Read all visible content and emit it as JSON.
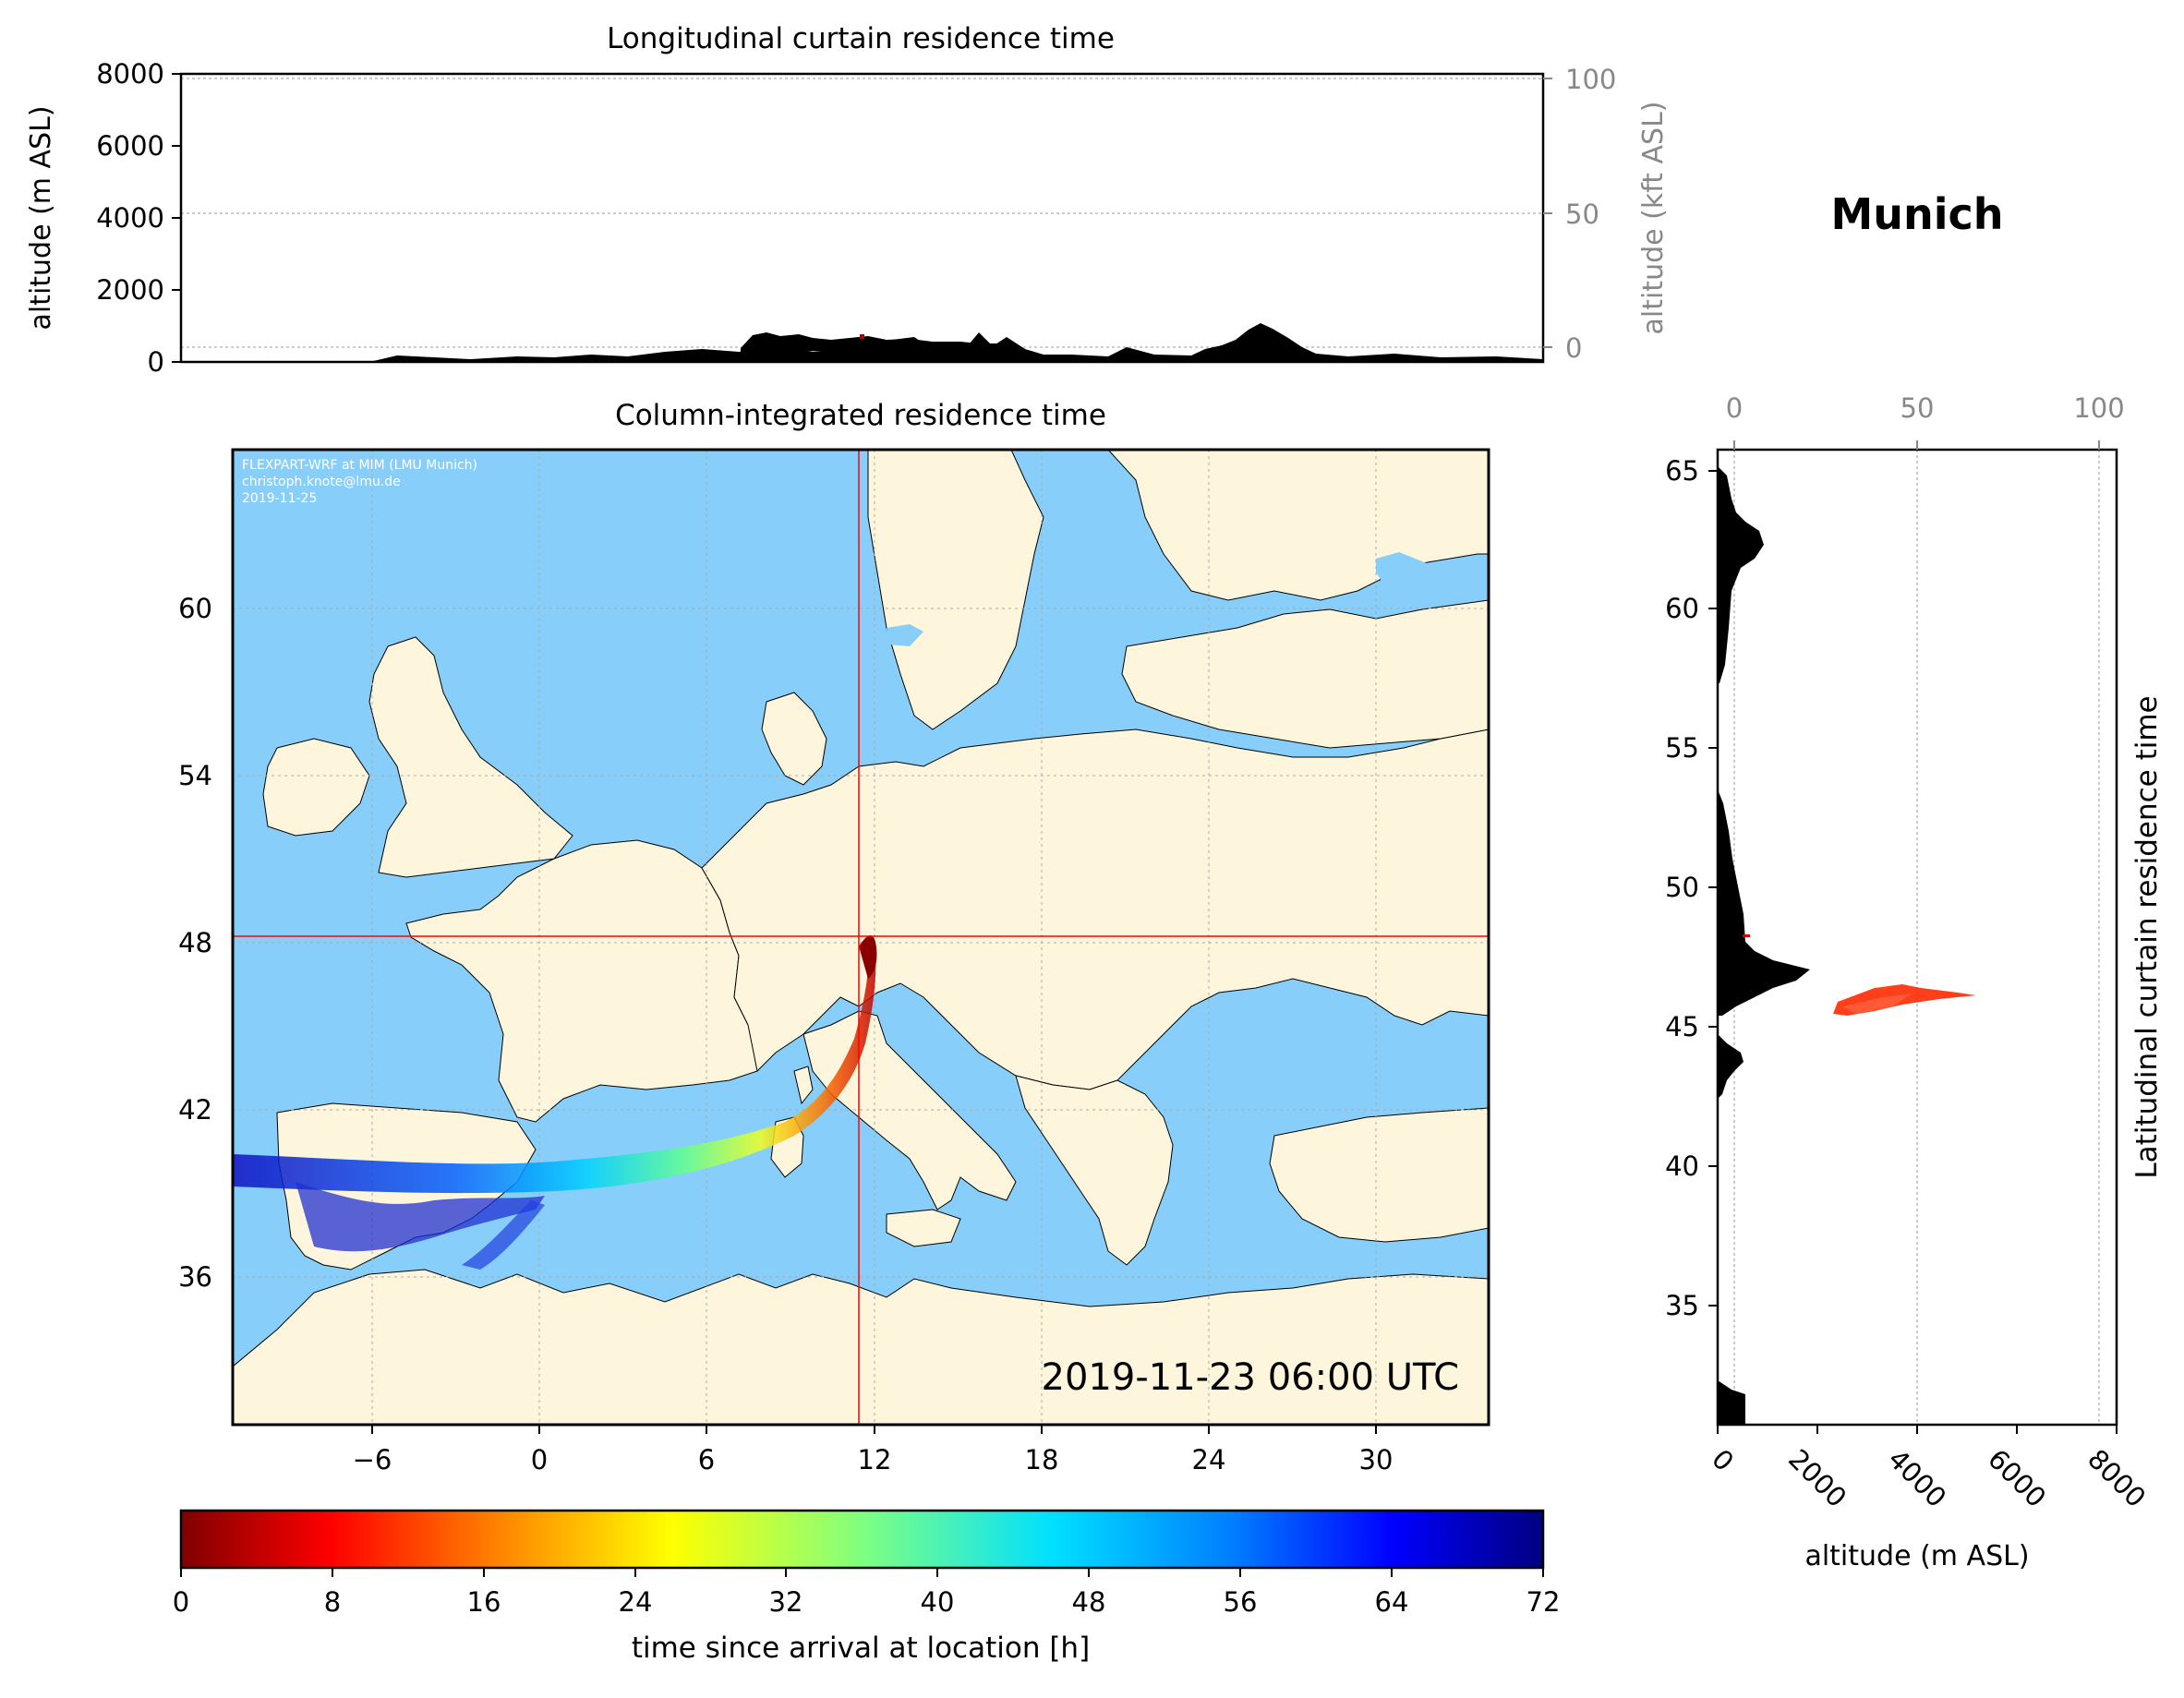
{
  "top_panel": {
    "title": "Longitudinal curtain residence time",
    "ylabel_left": "altitude (m ASL)",
    "ylabel_right": "altitude (kft ASL)",
    "yticks_left": [
      "0",
      "2000",
      "4000",
      "6000",
      "8000"
    ],
    "yticks_right": [
      "0",
      "50",
      "100"
    ]
  },
  "location_name": "Munich",
  "map_panel": {
    "title": "Column-integrated residence time",
    "credit_line1": "FLEXPART-WRF at MIM (LMU Munich)",
    "credit_line2": "christoph.knote@lmu.de",
    "credit_line3": "2019-11-25",
    "timestamp": "2019-11-23 06:00 UTC",
    "xticks": [
      "−6",
      "0",
      "6",
      "12",
      "18",
      "24",
      "30"
    ],
    "yticks": [
      "36",
      "42",
      "48",
      "54",
      "60"
    ],
    "colors": {
      "sea": "#87cefa",
      "land": "#fdf5dc",
      "crosshair": "#ff0000"
    }
  },
  "side_panel": {
    "title": "Latitudinal curtain residence time",
    "xlabel": "altitude (m ASL)",
    "xticks_bottom": [
      "0",
      "2000",
      "4000",
      "6000",
      "8000"
    ],
    "xticks_top": [
      "0",
      "50",
      "100"
    ],
    "yticks": [
      "35",
      "40",
      "45",
      "50",
      "55",
      "60",
      "65"
    ]
  },
  "colorbar": {
    "label": "time since arrival at location [h]",
    "ticks": [
      "0",
      "8",
      "16",
      "24",
      "32",
      "40",
      "48",
      "56",
      "64",
      "72"
    ],
    "range_hours": [
      0,
      72
    ],
    "colormap": "jet_r"
  },
  "chart_data": {
    "type": "map",
    "release_point": {
      "lon": 11.6,
      "lat": 48.15
    },
    "longitude_range": [
      -11,
      34
    ],
    "latitude_range": [
      30.5,
      65.5
    ],
    "trajectory_hours": [
      0,
      72
    ],
    "altitude_range_m": [
      0,
      8000
    ]
  }
}
